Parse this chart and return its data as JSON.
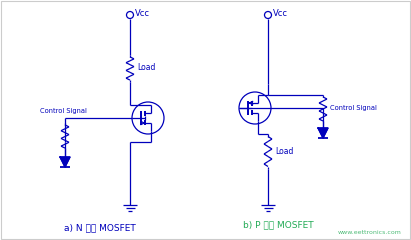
{
  "bg_color": "#ffffff",
  "line_color": "#0000bb",
  "green_color": "#22aa55",
  "title_left": "a) N 沟道 MOSFET",
  "title_right": "b) P 沟道 MOSFET",
  "watermark": "www.eettronics.com",
  "vcc_label": "Vcc",
  "load_label": "Load",
  "control_label": "Control Signal",
  "border_color": "#cccccc"
}
